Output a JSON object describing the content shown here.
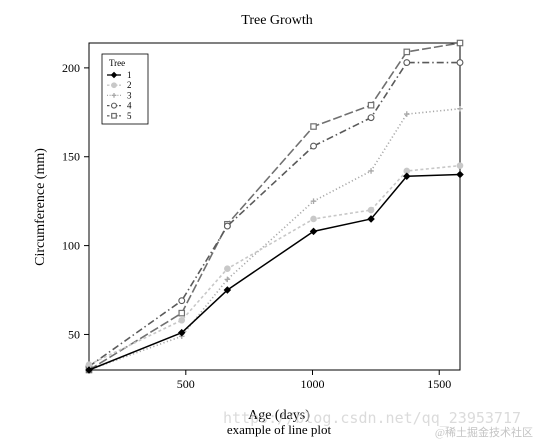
{
  "chart_data": {
    "type": "line",
    "title": "Tree Growth",
    "xlabel": "Age (days)",
    "ylabel": "Circumference (mm)",
    "caption": "example of line plot",
    "xlim": [
      118,
      1582
    ],
    "ylim": [
      30,
      214
    ],
    "xticks": [
      500,
      1000,
      1500
    ],
    "yticks": [
      50,
      100,
      150,
      200
    ],
    "x": [
      118,
      484,
      664,
      1004,
      1231,
      1372,
      1582
    ],
    "legend": {
      "title": "Tree",
      "position": "top-left"
    },
    "grid": false,
    "series": [
      {
        "name": "1",
        "values": [
          30,
          51,
          75,
          108,
          115,
          139,
          140
        ],
        "color": "#000000",
        "marker": "filled-diamond",
        "linestyle": "solid"
      },
      {
        "name": "2",
        "values": [
          33,
          58,
          87,
          115,
          120,
          142,
          145
        ],
        "color": "#c8c8c8",
        "marker": "filled-circle",
        "linestyle": "dashed"
      },
      {
        "name": "3",
        "values": [
          30,
          49,
          81,
          125,
          142,
          174,
          177
        ],
        "color": "#a8a8a8",
        "marker": "plus",
        "linestyle": "dotted"
      },
      {
        "name": "4",
        "values": [
          32,
          69,
          111,
          156,
          172,
          203,
          203
        ],
        "color": "#5a5a5a",
        "marker": "open-circle",
        "linestyle": "dashdot"
      },
      {
        "name": "5",
        "values": [
          30,
          62,
          112,
          167,
          179,
          209,
          214
        ],
        "color": "#707070",
        "marker": "open-square",
        "linestyle": "longdash"
      }
    ]
  },
  "watermark": {
    "url_text": "https://blog.csdn.net/qq_23953717",
    "brand_text": "@稀土掘金技术社区"
  }
}
